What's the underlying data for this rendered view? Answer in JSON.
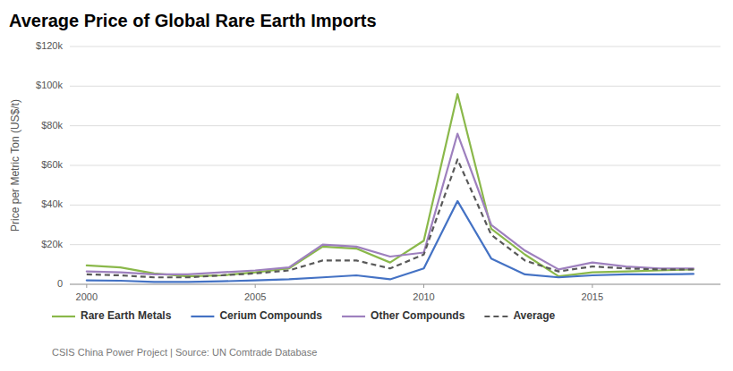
{
  "chart_data": {
    "type": "line",
    "title": "Average Price of Global Rare Earth Imports",
    "y_label": "Price per Metric Ton (US$/t)",
    "annotations": [
      "CSIS China Power Project | Source: UN Comtrade Database"
    ],
    "x": [
      2000,
      2001,
      2002,
      2003,
      2004,
      2005,
      2006,
      2007,
      2008,
      2009,
      2010,
      2011,
      2012,
      2013,
      2014,
      2015,
      2016,
      2017,
      2018
    ],
    "series": [
      {
        "name": "Rare Earth Metals",
        "color": "#8ab84a",
        "line_style": "solid",
        "values": [
          9500,
          8500,
          5500,
          4000,
          4500,
          6000,
          8000,
          19000,
          18000,
          11000,
          22000,
          96000,
          28000,
          15000,
          4000,
          6000,
          6500,
          7000,
          7500
        ]
      },
      {
        "name": "Cerium Compounds",
        "color": "#4472c4",
        "line_style": "solid",
        "values": [
          2000,
          1800,
          1200,
          1200,
          1500,
          2000,
          2500,
          3500,
          4500,
          2500,
          8000,
          42000,
          13000,
          5000,
          3500,
          4500,
          5000,
          5000,
          5200
        ]
      },
      {
        "name": "Other Compounds",
        "color": "#9e80be",
        "line_style": "solid",
        "values": [
          6500,
          6000,
          5000,
          5000,
          6000,
          7000,
          8500,
          20000,
          19000,
          14000,
          16000,
          76000,
          30000,
          17000,
          7500,
          11000,
          9000,
          8000,
          8000
        ]
      },
      {
        "name": "Average",
        "color": "#595959",
        "line_style": "dashed",
        "values": [
          5000,
          4500,
          3500,
          3500,
          4500,
          5500,
          7000,
          12000,
          12000,
          8000,
          15000,
          63000,
          25000,
          12000,
          6500,
          9000,
          8000,
          7500,
          7500
        ]
      }
    ],
    "xlim": [
      1999.5,
      2018.8
    ],
    "xticks": [
      2000,
      2005,
      2010,
      2015
    ],
    "ylim": [
      0,
      120000
    ],
    "yticks": [
      0,
      {
        "value": 20000,
        "label": "$20k"
      },
      {
        "value": 40000,
        "label": "$40k"
      },
      {
        "value": 60000,
        "label": "$60k"
      },
      {
        "value": 80000,
        "label": "$80k"
      },
      {
        "value": 100000,
        "label": "$100k"
      },
      {
        "value": 120000,
        "label": "$120k"
      }
    ],
    "grid": true,
    "legend": "bottom"
  }
}
